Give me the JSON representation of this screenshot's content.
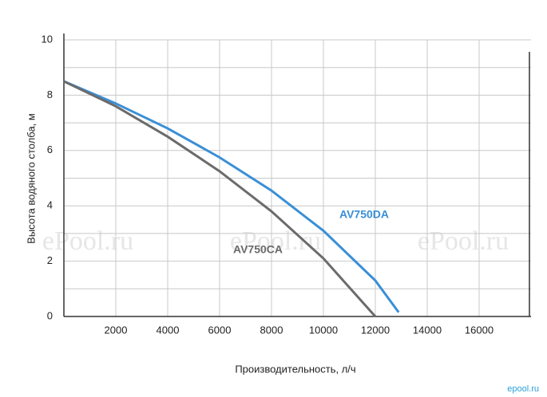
{
  "chart_data": {
    "type": "line",
    "x_label": "Производительность, л/ч",
    "y_label": "Высота водяного столба, м",
    "xlim": [
      0,
      18000
    ],
    "xticks": [
      2000,
      4000,
      6000,
      8000,
      10000,
      12000,
      14000,
      16000
    ],
    "ylim": [
      0,
      10
    ],
    "yticks": [
      0,
      2,
      4,
      6,
      8,
      10
    ],
    "minor_yticks": [
      1,
      3,
      5,
      7,
      9
    ],
    "grid": true,
    "series": [
      {
        "name": "AV750DA",
        "color": "#3a8fd6",
        "x": [
          0,
          2000,
          4000,
          6000,
          8000,
          10000,
          12000,
          12900
        ],
        "values": [
          8.5,
          7.7,
          6.8,
          5.75,
          4.55,
          3.1,
          1.3,
          0.15
        ]
      },
      {
        "name": "AV750CA",
        "color": "#6b6b6b",
        "x": [
          0,
          2000,
          4000,
          6000,
          8000,
          10000,
          12000
        ],
        "values": [
          8.5,
          7.6,
          6.5,
          5.25,
          3.8,
          2.1,
          0
        ]
      }
    ],
    "watermarks": [
      "ePool.ru",
      "ePool.ru",
      "ePool.ru"
    ],
    "logo": "epool.ru"
  }
}
